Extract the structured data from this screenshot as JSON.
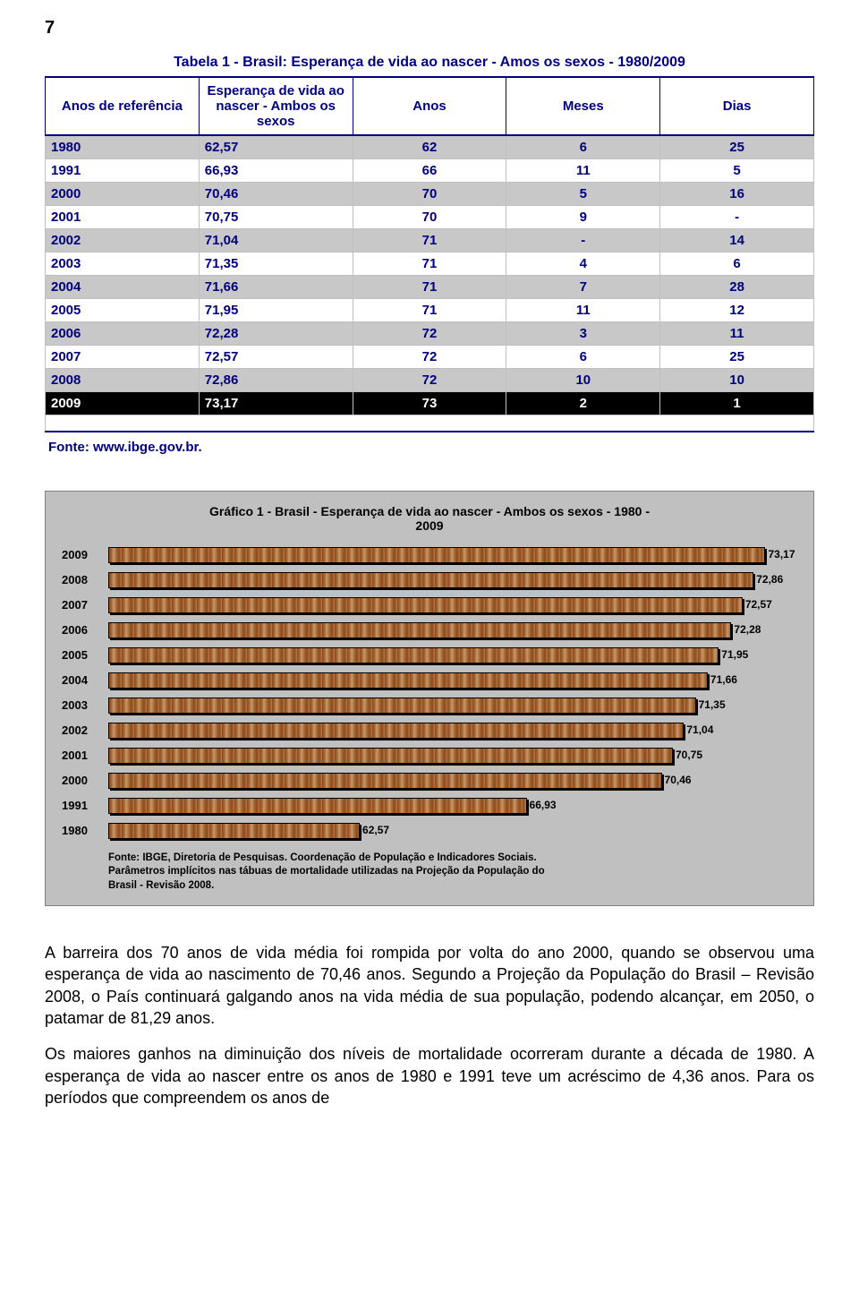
{
  "page_number": "7",
  "table1": {
    "title": "Tabela 1 - Brasil: Esperança de vida ao nascer - Amos os sexos - 1980/2009",
    "columns": [
      "Anos de referência",
      "Esperança de vida ao nascer - Ambos os sexos",
      "Anos",
      "Meses",
      "Dias"
    ],
    "rows": [
      {
        "cells": [
          "1980",
          "62,57",
          "62",
          "6",
          "25"
        ],
        "striped": true
      },
      {
        "cells": [
          "1991",
          "66,93",
          "66",
          "11",
          "5"
        ],
        "striped": false
      },
      {
        "cells": [
          "2000",
          "70,46",
          "70",
          "5",
          "16"
        ],
        "striped": true
      },
      {
        "cells": [
          "2001",
          "70,75",
          "70",
          "9",
          "-"
        ],
        "striped": false
      },
      {
        "cells": [
          "2002",
          "71,04",
          "71",
          "-",
          "14"
        ],
        "striped": true
      },
      {
        "cells": [
          "2003",
          "71,35",
          "71",
          "4",
          "6"
        ],
        "striped": false
      },
      {
        "cells": [
          "2004",
          "71,66",
          "71",
          "7",
          "28"
        ],
        "striped": true
      },
      {
        "cells": [
          "2005",
          "71,95",
          "71",
          "11",
          "12"
        ],
        "striped": false
      },
      {
        "cells": [
          "2006",
          "72,28",
          "72",
          "3",
          "11"
        ],
        "striped": true
      },
      {
        "cells": [
          "2007",
          "72,57",
          "72",
          "6",
          "25"
        ],
        "striped": false
      },
      {
        "cells": [
          "2008",
          "72,86",
          "72",
          "10",
          "10"
        ],
        "striped": true
      },
      {
        "cells": [
          "2009",
          "73,17",
          "73",
          "2",
          "1"
        ],
        "highlight": true
      }
    ],
    "source": "Fonte: www.ibge.gov.br."
  },
  "chart1": {
    "type": "bar",
    "title_line1": "Gráfico 1 - Brasil - Esperança de vida ao nascer - Ambos os sexos - 1980 -",
    "title_line2": "2009",
    "background_color": "#c0c0c0",
    "bar_border_color": "#000000",
    "title_fontsize": 14,
    "label_fontsize": 13,
    "value_fontsize": 12,
    "xlim_min": 56,
    "xlim_max": 74,
    "bars": [
      {
        "label": "2009",
        "value": 73.17,
        "text": "73,17"
      },
      {
        "label": "2008",
        "value": 72.86,
        "text": "72,86"
      },
      {
        "label": "2007",
        "value": 72.57,
        "text": "72,57"
      },
      {
        "label": "2006",
        "value": 72.28,
        "text": "72,28"
      },
      {
        "label": "2005",
        "value": 71.95,
        "text": "71,95"
      },
      {
        "label": "2004",
        "value": 71.66,
        "text": "71,66"
      },
      {
        "label": "2003",
        "value": 71.35,
        "text": "71,35"
      },
      {
        "label": "2002",
        "value": 71.04,
        "text": "71,04"
      },
      {
        "label": "2001",
        "value": 70.75,
        "text": "70,75"
      },
      {
        "label": "2000",
        "value": 70.46,
        "text": "70,46"
      },
      {
        "label": "1991",
        "value": 66.93,
        "text": "66,93"
      },
      {
        "label": "1980",
        "value": 62.57,
        "text": "62,57"
      }
    ],
    "source_line1": "Fonte: IBGE, Diretoria de Pesquisas. Coordenação de População e Indicadores Sociais.",
    "source_line2": "Parâmetros implícitos nas tábuas de mortalidade utilizadas na Projeção da População do",
    "source_line3": "Brasil - Revisão 2008."
  },
  "body_text": {
    "p1": "A barreira dos 70 anos de vida média foi rompida por volta do ano 2000, quando se observou uma esperança de vida ao nascimento de 70,46 anos. Segundo a Projeção da População do Brasil – Revisão 2008, o País continuará galgando anos na vida média de sua população, podendo alcançar, em 2050, o patamar de 81,29 anos.",
    "p2": "Os maiores ganhos na diminuição dos níveis de mortalidade ocorreram durante a década de 1980. A esperança de vida ao nascer entre os anos de 1980 e 1991 teve um acréscimo de 4,36 anos. Para os períodos que compreendem os anos de"
  }
}
